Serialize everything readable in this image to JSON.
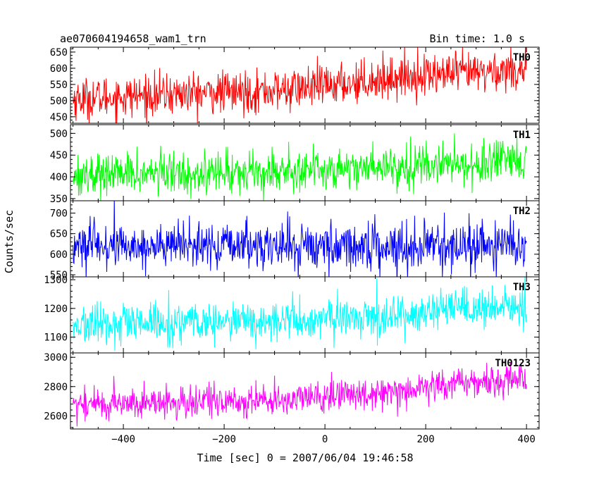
{
  "chart_data": {
    "type": "line",
    "title": "ae070604194658_wam1_trn",
    "subtitle": "Bin time: 1.0 s",
    "xlabel": "Time [sec] 0 = 2007/06/04 19:46:58",
    "ylabel": "Counts/sec",
    "xlim": [
      -505,
      425
    ],
    "x_ticks": [
      -400,
      -200,
      0,
      200,
      400
    ],
    "x_tick_labels": [
      "−400",
      "−200",
      "0",
      "200",
      "400"
    ],
    "grid": false,
    "legend": "none",
    "sample_x_start": -500,
    "sample_x_end": 400,
    "panels": [
      {
        "name": "TH0",
        "color": "#ff0000",
        "ylim": [
          430,
          665
        ],
        "y_ticks": [
          450,
          500,
          550,
          600,
          650
        ],
        "y_tick_labels": [
          "450",
          "500",
          "550",
          "600",
          "650"
        ],
        "trend": [
          [
            -500,
            505
          ],
          [
            -300,
            520
          ],
          [
            -100,
            530
          ],
          [
            0,
            545
          ],
          [
            100,
            565
          ],
          [
            200,
            580
          ],
          [
            300,
            585
          ],
          [
            400,
            600
          ]
        ],
        "noise": 32
      },
      {
        "name": "TH1",
        "color": "#00ff00",
        "ylim": [
          345,
          520
        ],
        "y_ticks": [
          350,
          400,
          450,
          500
        ],
        "y_tick_labels": [
          "350",
          "400",
          "450",
          "500"
        ],
        "trend": [
          [
            -500,
            405
          ],
          [
            -200,
            410
          ],
          [
            0,
            418
          ],
          [
            200,
            428
          ],
          [
            400,
            432
          ]
        ],
        "noise": 24
      },
      {
        "name": "TH2",
        "color": "#0000ff",
        "ylim": [
          545,
          730
        ],
        "y_ticks": [
          550,
          600,
          650,
          700
        ],
        "y_tick_labels": [
          "550",
          "600",
          "650",
          "700"
        ],
        "trend": [
          [
            -500,
            620
          ],
          [
            0,
            620
          ],
          [
            400,
            620
          ]
        ],
        "noise": 28
      },
      {
        "name": "TH3",
        "color": "#00ffff",
        "ylim": [
          1045,
          1310
        ],
        "y_ticks": [
          1100,
          1200,
          1300
        ],
        "y_tick_labels": [
          "1100",
          "1200",
          "1300"
        ],
        "trend": [
          [
            -500,
            1140
          ],
          [
            -200,
            1150
          ],
          [
            0,
            1160
          ],
          [
            200,
            1185
          ],
          [
            400,
            1205
          ]
        ],
        "noise": 35
      },
      {
        "name": "TH0123",
        "color": "#ff00ff",
        "ylim": [
          2510,
          3030
        ],
        "y_ticks": [
          2600,
          2800,
          3000
        ],
        "y_tick_labels": [
          "2600",
          "2800",
          "3000"
        ],
        "trend": [
          [
            -500,
            2680
          ],
          [
            -300,
            2690
          ],
          [
            -100,
            2705
          ],
          [
            0,
            2730
          ],
          [
            100,
            2760
          ],
          [
            200,
            2800
          ],
          [
            300,
            2830
          ],
          [
            400,
            2860
          ]
        ],
        "noise": 55
      }
    ]
  }
}
